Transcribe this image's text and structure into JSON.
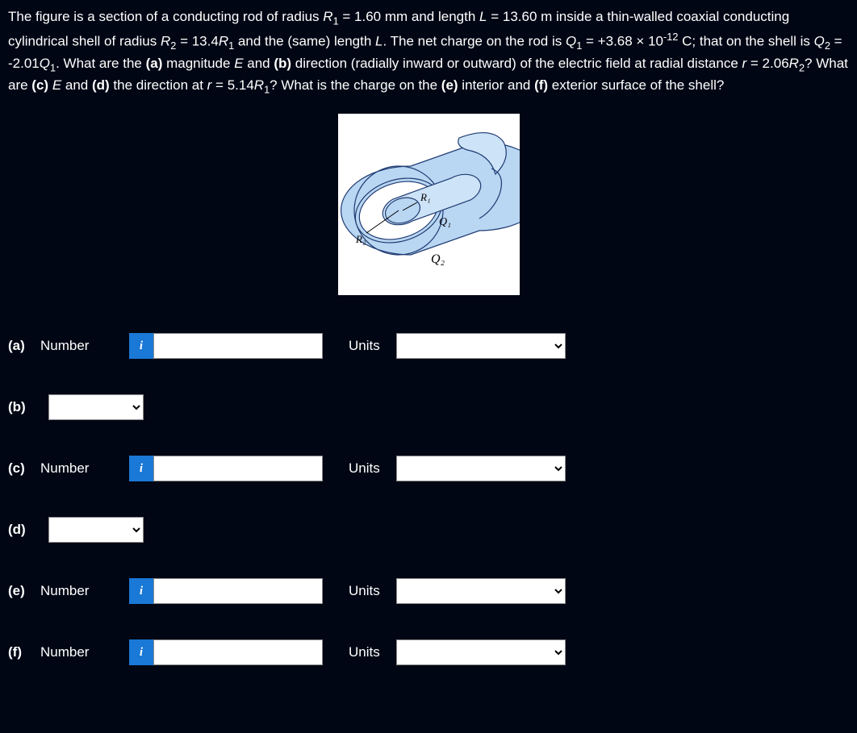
{
  "problem": {
    "html": "The figure is a section of a conducting rod of radius <i>R</i><sub>1</sub> = 1.60 mm and length <i>L</i> = 13.60 m inside a thin-walled coaxial conducting cylindrical shell of radius <i>R</i><sub>2</sub> = 13.4<i>R</i><sub>1</sub> and the (same) length <i>L</i>. The net charge on the rod is <i>Q</i><sub>1</sub> = +3.68 × 10<sup>-12</sup> C; that on the shell is <i>Q</i><sub>2</sub> = -2.01<i>Q</i><sub>1</sub>. What are the <b>(a)</b> magnitude <i>E</i> and <b>(b)</b> direction (radially inward or outward) of the electric field at radial distance <i>r</i> = 2.06<i>R</i><sub>2</sub>? What are <b>(c)</b> <i>E</i> and <b>(d)</b> the direction at <i>r</i> = 5.14<i>R</i><sub>1</sub>? What is the charge on the <b>(e)</b> interior and <b>(f)</b> exterior surface of the shell?"
  },
  "figure": {
    "labels": {
      "R1": "R₁",
      "R2": "R₂",
      "Q1": "Q₁",
      "Q2": "Q₂"
    },
    "colors": {
      "outer_fill": "#b9d6f2",
      "outer_stroke": "#1f3b73",
      "inner_fill": "#cde3f7",
      "inner_stroke": "#1f3b73",
      "bg": "#ffffff"
    }
  },
  "labels": {
    "number": "Number",
    "units": "Units",
    "info": "i"
  },
  "rows": {
    "a": {
      "part": "(a)",
      "type": "number_units",
      "value": "",
      "units": ""
    },
    "b": {
      "part": "(b)",
      "type": "select",
      "value": ""
    },
    "c": {
      "part": "(c)",
      "type": "number_units",
      "value": "",
      "units": ""
    },
    "d": {
      "part": "(d)",
      "type": "select",
      "value": ""
    },
    "e": {
      "part": "(e)",
      "type": "number_units",
      "value": "",
      "units": ""
    },
    "f": {
      "part": "(f)",
      "type": "number_units",
      "value": "",
      "units": ""
    }
  }
}
